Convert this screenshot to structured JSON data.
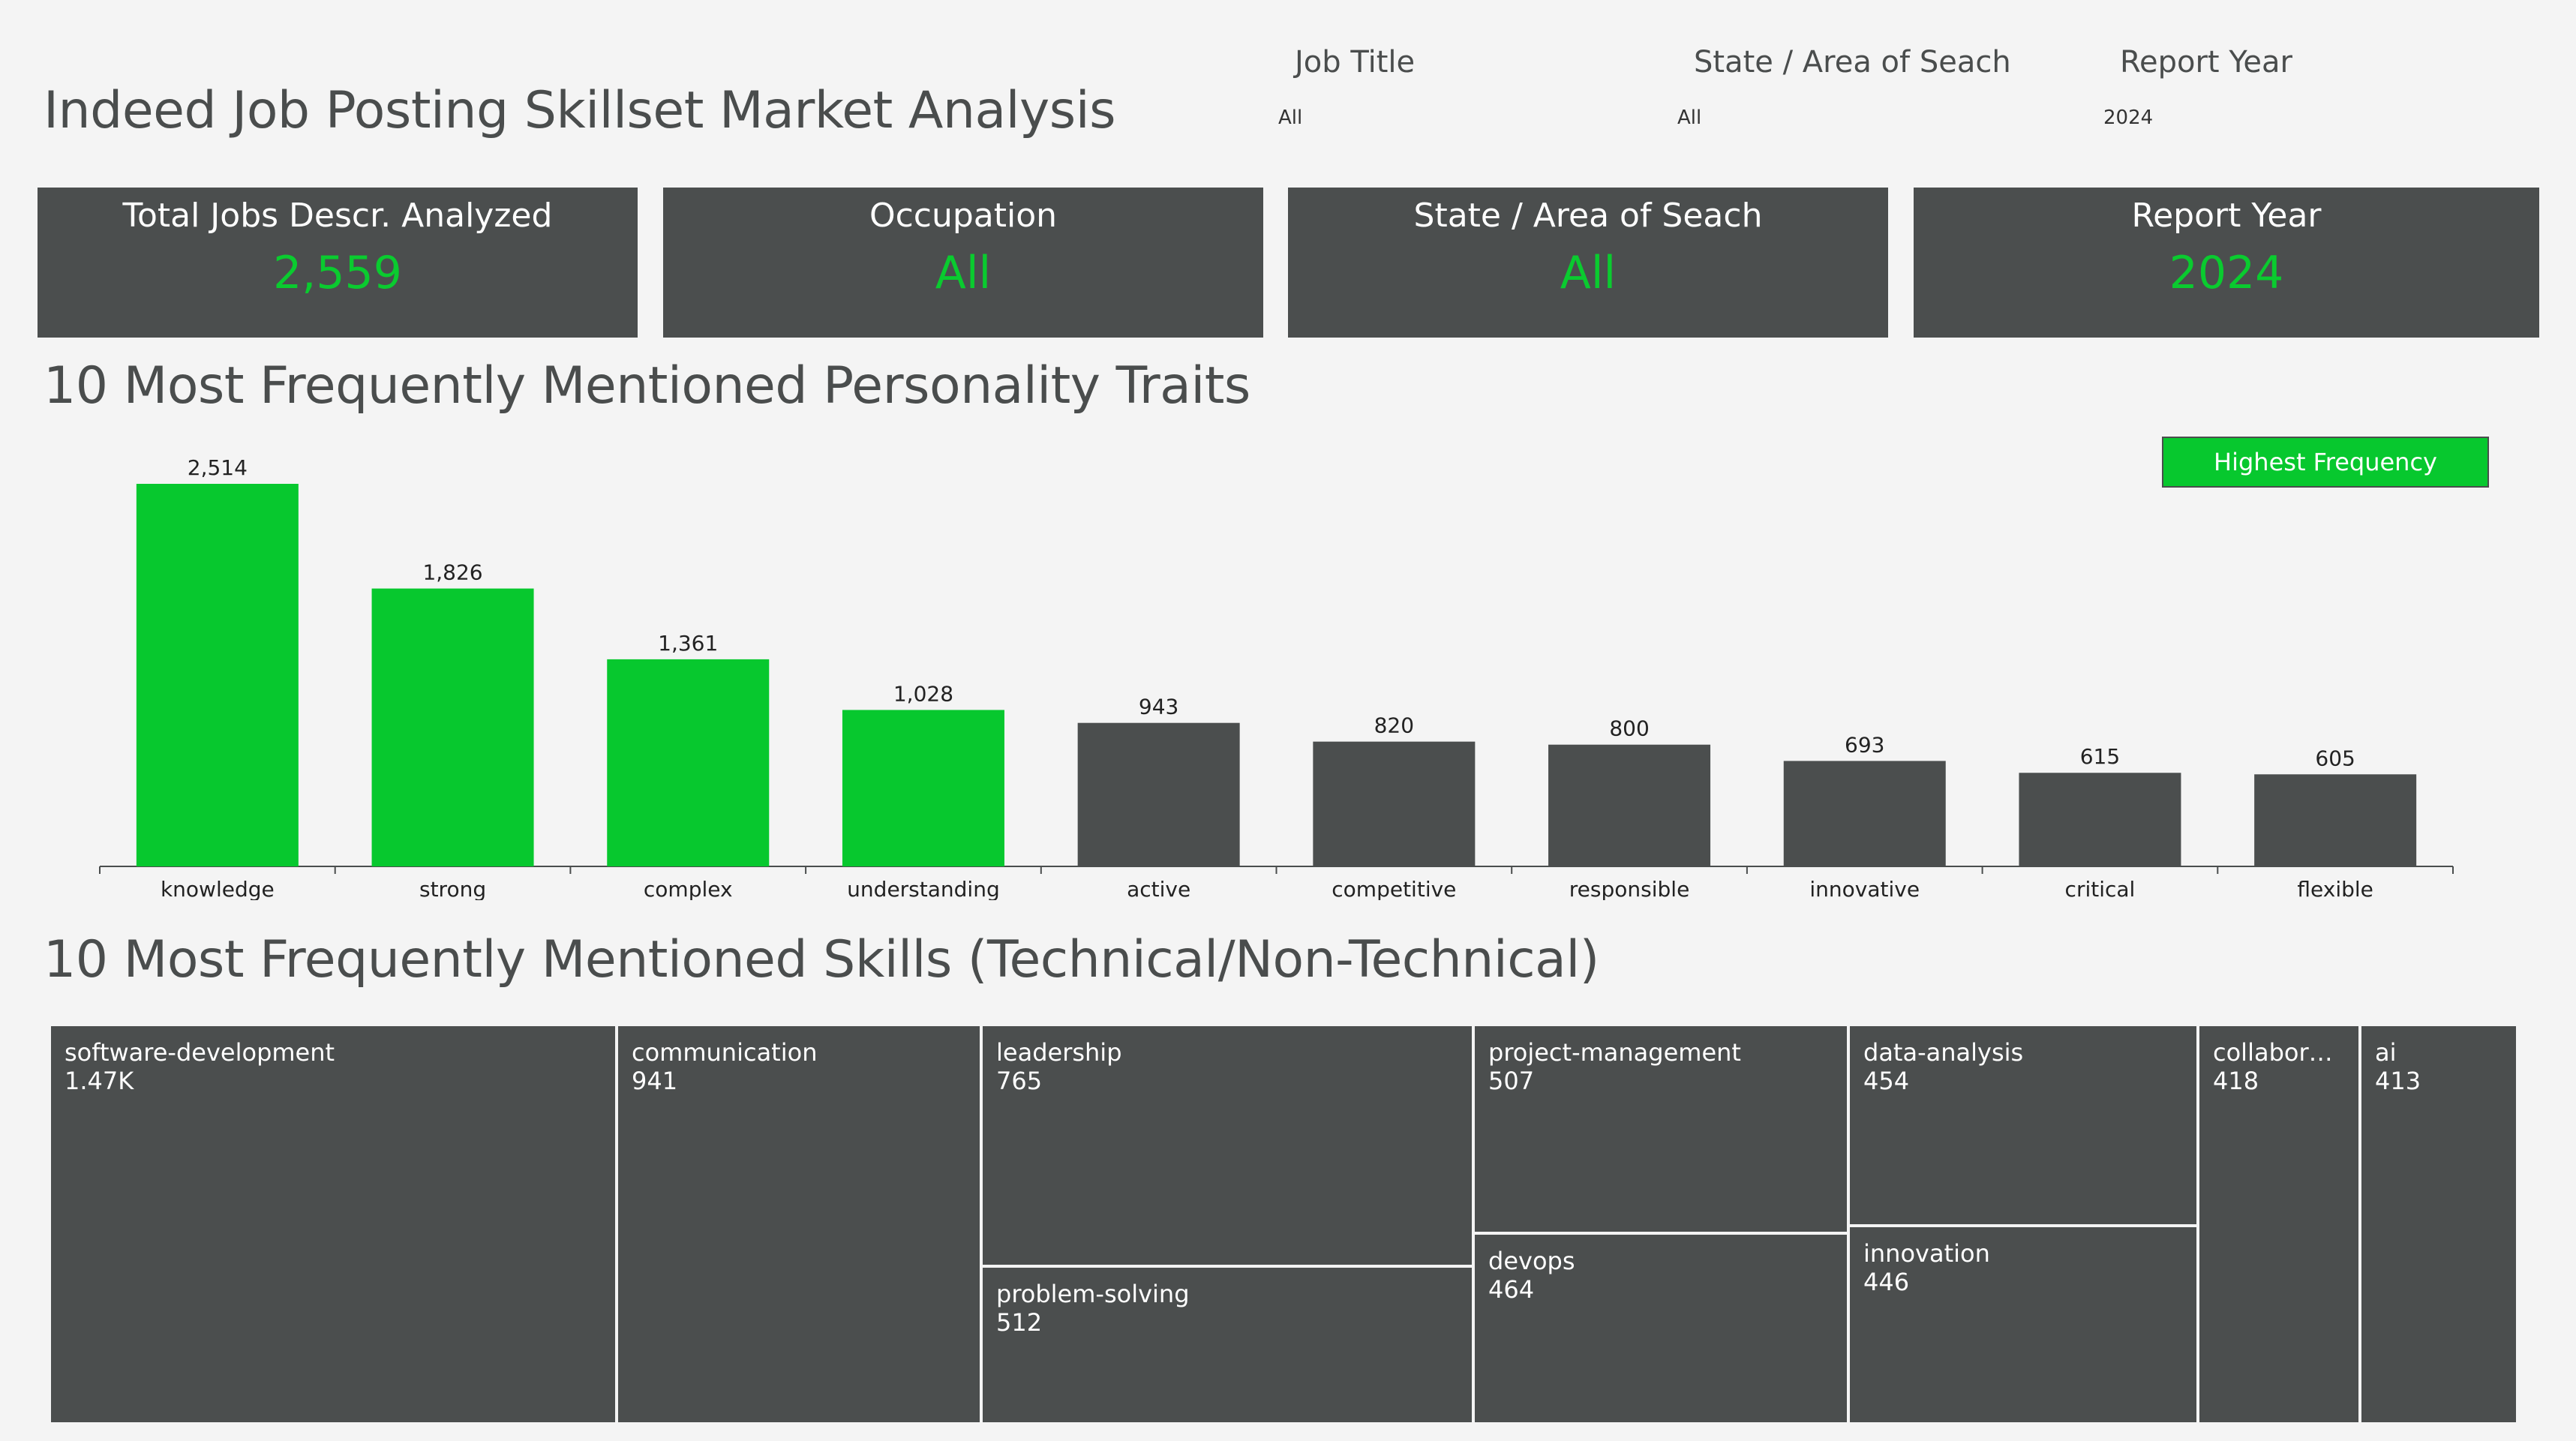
{
  "header": {
    "title": "Indeed Job Posting Skillset Market Analysis"
  },
  "filters": [
    {
      "label": "Job Title",
      "value": "All"
    },
    {
      "label": "State / Area of Seach",
      "value": "All"
    },
    {
      "label": "Report Year",
      "value": "2024"
    }
  ],
  "kpis": [
    {
      "label": "Total Jobs Descr. Analyzed",
      "value": "2,559"
    },
    {
      "label": "Occupation",
      "value": "All"
    },
    {
      "label": "State / Area of Seach",
      "value": "All"
    },
    {
      "label": "Report Year",
      "value": "2024"
    }
  ],
  "traits_section": {
    "title": "10 Most Frequently Mentioned Personality Traits",
    "legend_label": "Highest Frequency"
  },
  "skills_section": {
    "title": "10 Most Frequently Mentioned Skills (Technical/Non-Technical)"
  },
  "colors": {
    "highlight": "#07c82e",
    "normal": "#4b4e4e",
    "kpi_value": "#0acb2f",
    "background": "#f4f4f4"
  },
  "chart_data": [
    {
      "type": "bar",
      "title": "10 Most Frequently Mentioned Personality Traits",
      "categories": [
        "knowledge",
        "strong",
        "complex",
        "understanding",
        "active",
        "competitive",
        "responsible",
        "innovative",
        "critical",
        "flexible"
      ],
      "values": [
        2514,
        1826,
        1361,
        1028,
        943,
        820,
        800,
        693,
        615,
        605
      ],
      "value_labels": [
        "2,514",
        "1,826",
        "1,361",
        "1,028",
        "943",
        "820",
        "800",
        "693",
        "615",
        "605"
      ],
      "highlighted": [
        true,
        true,
        true,
        true,
        false,
        false,
        false,
        false,
        false,
        false
      ],
      "ylim": [
        0,
        2514
      ],
      "grid": false,
      "legend": "top-right"
    },
    {
      "type": "treemap",
      "title": "10 Most Frequently Mentioned Skills (Technical/Non-Technical)",
      "items": [
        {
          "label": "software-development",
          "value_label": "1.47K"
        },
        {
          "label": "communication",
          "value_label": "941"
        },
        {
          "label": "leadership",
          "value_label": "765"
        },
        {
          "label": "problem-solving",
          "value_label": "512"
        },
        {
          "label": "project-management",
          "value_label": "507"
        },
        {
          "label": "devops",
          "value_label": "464"
        },
        {
          "label": "data-analysis",
          "value_label": "454"
        },
        {
          "label": "innovation",
          "value_label": "446"
        },
        {
          "label": "collabora…",
          "value_label": "418"
        },
        {
          "label": "ai",
          "value_label": "413"
        }
      ]
    }
  ]
}
